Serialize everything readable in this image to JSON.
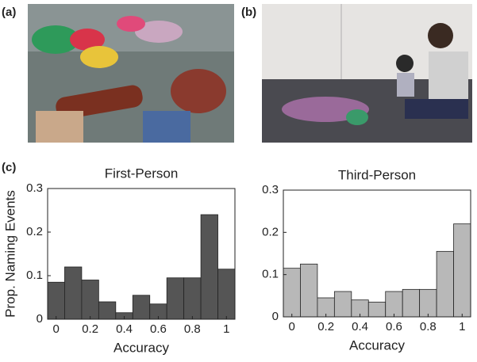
{
  "panel_labels": [
    "(a)",
    "(b)",
    "(c)"
  ],
  "chart_data": [
    {
      "type": "histogram",
      "title": "First-Person",
      "xlabel": "Accuracy",
      "ylabel": "Prop. Naming Events",
      "bins": [
        -0.05,
        0.05,
        0.15,
        0.25,
        0.35,
        0.45,
        0.55,
        0.65,
        0.75,
        0.85,
        0.95,
        1.05
      ],
      "values": [
        0.085,
        0.12,
        0.09,
        0.04,
        0.015,
        0.055,
        0.035,
        0.095,
        0.095,
        0.24,
        0.115
      ],
      "color": "#555555",
      "xlim": [
        -0.05,
        1.05
      ],
      "ylim": [
        0,
        0.3
      ],
      "xticks": [
        0,
        0.2,
        0.4,
        0.6,
        0.8,
        1
      ],
      "yticks": [
        0,
        0.1,
        0.2,
        0.3
      ],
      "grid": false
    },
    {
      "type": "histogram",
      "title": "Third-Person",
      "xlabel": "Accuracy",
      "bins": [
        -0.05,
        0.05,
        0.15,
        0.25,
        0.35,
        0.45,
        0.55,
        0.65,
        0.75,
        0.85,
        0.95,
        1.05
      ],
      "values": [
        0.115,
        0.125,
        0.045,
        0.06,
        0.04,
        0.035,
        0.06,
        0.065,
        0.065,
        0.155,
        0.22
      ],
      "color": "#b8b8b8",
      "xlim": [
        -0.05,
        1.05
      ],
      "ylim": [
        0,
        0.3
      ],
      "xticks": [
        0,
        0.2,
        0.4,
        0.6,
        0.8,
        1
      ],
      "yticks": [
        0,
        0.1,
        0.2,
        0.3
      ],
      "grid": false
    }
  ]
}
